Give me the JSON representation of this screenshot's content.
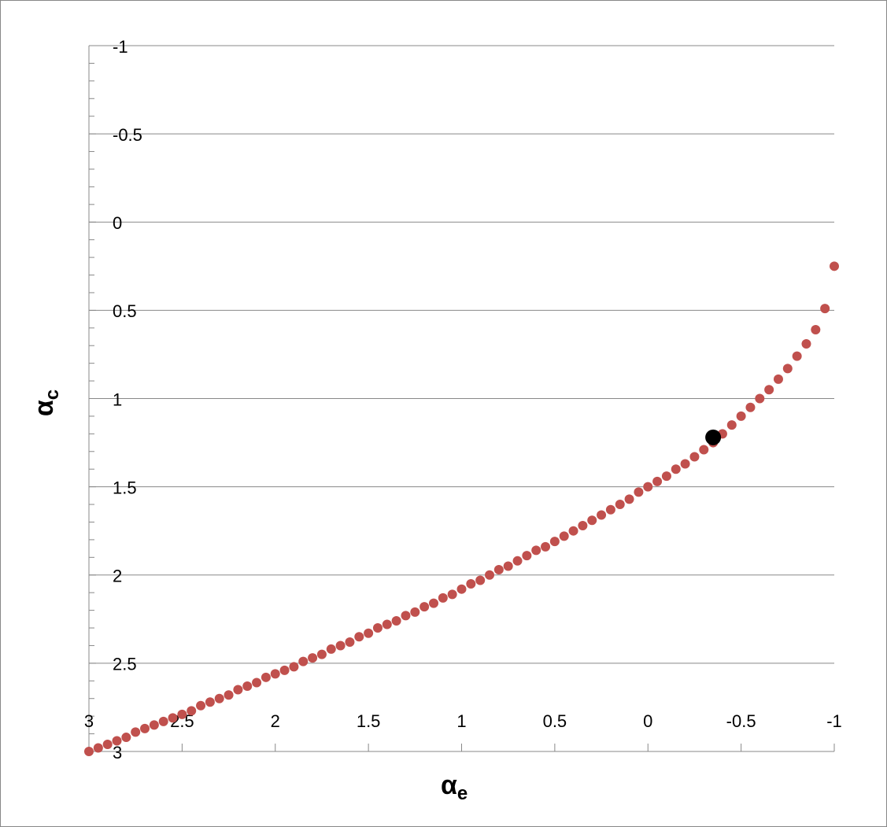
{
  "chart_data": {
    "type": "scatter",
    "xlabel": {
      "symbol": "α",
      "subscript": "e"
    },
    "ylabel": {
      "symbol": "α",
      "subscript": "c"
    },
    "xlim": [
      3,
      -1
    ],
    "ylim": [
      3,
      -1
    ],
    "xticks": [
      3,
      2.5,
      2,
      1.5,
      1,
      0.5,
      0,
      -0.5,
      -1
    ],
    "yticks": [
      -1,
      -0.5,
      0,
      0.5,
      1,
      1.5,
      2,
      2.5,
      3
    ],
    "yminorticks": [
      -0.9,
      -0.8,
      -0.7,
      -0.6,
      -0.4,
      -0.3,
      -0.2,
      -0.1,
      0.1,
      0.2,
      0.3,
      0.4,
      0.6,
      0.7,
      0.8,
      0.9,
      1.1,
      1.2,
      1.3,
      1.4,
      1.6,
      1.7,
      1.8,
      1.9,
      2.1,
      2.2,
      2.3,
      2.4,
      2.6,
      2.7,
      2.8,
      2.9
    ],
    "grid": true,
    "series": [
      {
        "color": "#c0504d",
        "size": 6,
        "x": [
          3,
          2.95,
          2.9,
          2.85,
          2.8,
          2.75,
          2.7,
          2.65,
          2.6,
          2.55,
          2.5,
          2.45,
          2.4,
          2.35,
          2.3,
          2.25,
          2.2,
          2.15,
          2.1,
          2.05,
          2,
          1.95,
          1.9,
          1.85,
          1.8,
          1.75,
          1.7,
          1.65,
          1.6,
          1.55,
          1.5,
          1.45,
          1.4,
          1.35,
          1.3,
          1.25,
          1.2,
          1.15,
          1.1,
          1.05,
          1,
          0.95,
          0.9,
          0.85,
          0.8,
          0.75,
          0.7,
          0.65,
          0.6,
          0.55,
          0.5,
          0.45,
          0.4,
          0.35,
          0.3,
          0.25,
          0.2,
          0.15,
          0.1,
          0.05,
          0,
          -0.05,
          -0.1,
          -0.15,
          -0.2,
          -0.25,
          -0.3,
          -0.35,
          -0.4,
          -0.45,
          -0.5,
          -0.55,
          -0.6,
          -0.65,
          -0.7,
          -0.75,
          -0.8,
          -0.85,
          -0.9,
          -0.95,
          -1
        ],
        "values": [
          3,
          2.98,
          2.96,
          2.94,
          2.92,
          2.89,
          2.87,
          2.85,
          2.83,
          2.81,
          2.79,
          2.77,
          2.74,
          2.72,
          2.7,
          2.68,
          2.65,
          2.63,
          2.61,
          2.58,
          2.56,
          2.54,
          2.52,
          2.49,
          2.47,
          2.45,
          2.42,
          2.4,
          2.38,
          2.35,
          2.33,
          2.3,
          2.28,
          2.26,
          2.23,
          2.21,
          2.18,
          2.16,
          2.13,
          2.11,
          2.08,
          2.05,
          2.03,
          2,
          1.97,
          1.95,
          1.92,
          1.89,
          1.86,
          1.84,
          1.81,
          1.78,
          1.75,
          1.72,
          1.69,
          1.66,
          1.63,
          1.6,
          1.57,
          1.53,
          1.5,
          1.47,
          1.44,
          1.4,
          1.37,
          1.33,
          1.29,
          1.25,
          1.2,
          1.15,
          1.1,
          1.05,
          1,
          0.95,
          0.89,
          0.83,
          0.76,
          0.69,
          0.61,
          0.49,
          0.25
        ]
      },
      {
        "color": "#000000",
        "size": 10,
        "x": [
          -0.35
        ],
        "values": [
          1.22
        ]
      }
    ]
  }
}
